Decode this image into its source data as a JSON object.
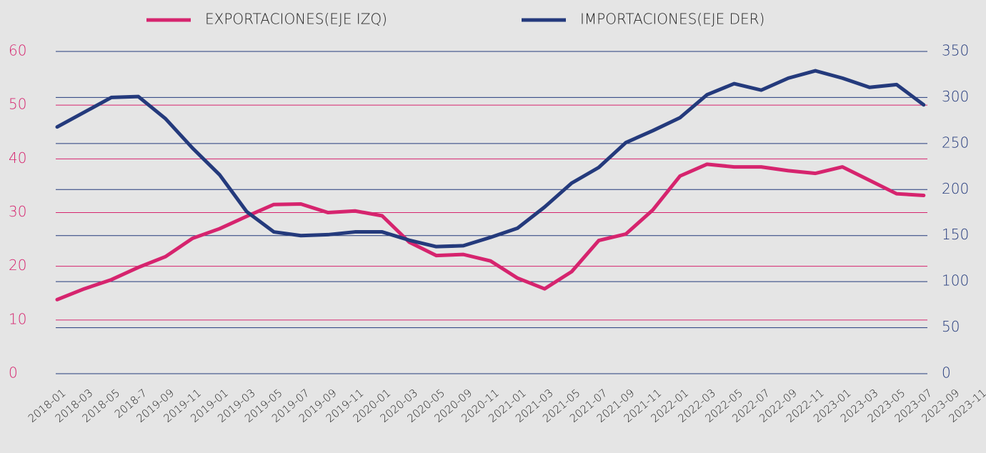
{
  "chart_data": {
    "type": "line",
    "categories": [
      "2018-01",
      "2018-03",
      "2018-05",
      "2018-7",
      "2019-09",
      "2019-11",
      "2019-01",
      "2019-03",
      "2019-05",
      "2019-07",
      "2019-09",
      "2019-11",
      "2020-01",
      "2020-03",
      "2020-05",
      "2020-09",
      "2020-11",
      "2021-01",
      "2021-03",
      "2021-05",
      "2021-07",
      "2021-09",
      "2021-11",
      "2022-01",
      "2022-03",
      "2022-05",
      "2022-07",
      "2022-09",
      "2022-11",
      "2023-01",
      "2023-03",
      "2023-05",
      "2023-07",
      "2023-09",
      "2023-11"
    ],
    "series": [
      {
        "name": "EXPORTACIONES(EJE IZQ)",
        "color": "#d6246e",
        "axis": "y",
        "values": [
          13.8,
          15.8,
          17.5,
          19.8,
          21.8,
          25.2,
          27.0,
          29.3,
          31.5,
          31.6,
          30.0,
          30.3,
          29.4,
          24.5,
          22.0,
          22.2,
          21.0,
          17.8,
          15.8,
          19.0,
          24.8,
          26.0,
          30.5,
          36.8,
          39.0,
          38.5,
          38.5,
          37.8,
          37.3,
          38.5,
          36.0,
          33.5,
          33.2,
          null,
          null
        ]
      },
      {
        "name": "IMPORTACIONES(EJE DER)",
        "color": "#243a7c",
        "axis": "y2",
        "values": [
          268,
          284,
          300,
          301,
          277,
          245,
          216,
          176,
          154,
          150,
          151,
          154,
          154,
          145,
          138,
          139,
          148,
          158,
          181,
          207,
          224,
          251,
          264,
          278,
          303,
          315,
          308,
          321,
          329,
          321,
          311,
          314,
          292,
          null,
          null
        ]
      }
    ],
    "ylim": [
      0,
      60
    ],
    "yticks": [
      0,
      10,
      20,
      30,
      40,
      50,
      60
    ],
    "y2lim": [
      0,
      350
    ],
    "y2ticks": [
      0,
      50,
      100,
      150,
      200,
      250,
      300,
      350
    ],
    "grid": true,
    "legend": "top"
  }
}
